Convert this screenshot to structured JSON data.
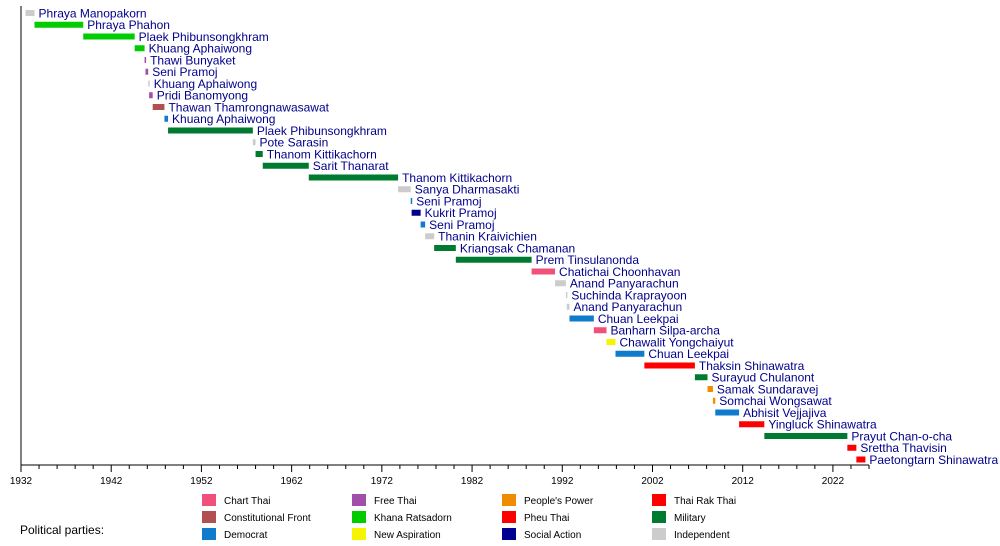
{
  "chart_data": {
    "type": "bar",
    "orientation": "horizontal-timeline",
    "title": "",
    "xlabel": "",
    "ylabel": "",
    "xlim": [
      1932,
      2026
    ],
    "x_ticks": [
      1932,
      1942,
      1952,
      1962,
      1972,
      1982,
      1992,
      2002,
      2012,
      2022
    ],
    "grid": false,
    "legend_title": "Political parties:",
    "legend_position": "bottom",
    "parties": [
      {
        "key": "chart_thai",
        "name": "Chart Thai",
        "color": "#f0507a"
      },
      {
        "key": "constitutional_front",
        "name": "Constitutional Front",
        "color": "#b05050"
      },
      {
        "key": "democrat",
        "name": "Democrat",
        "color": "#0f7bcc"
      },
      {
        "key": "free_thai",
        "name": "Free Thai",
        "color": "#a050a8"
      },
      {
        "key": "khana_ratsadorn",
        "name": "Khana Ratsadorn",
        "color": "#00cc00"
      },
      {
        "key": "new_aspiration",
        "name": "New Aspiration",
        "color": "#f5f500"
      },
      {
        "key": "peoples_power",
        "name": "People's Power",
        "color": "#f08c00"
      },
      {
        "key": "pheu_thai",
        "name": "Pheu Thai",
        "color": "#ff0000"
      },
      {
        "key": "social_action",
        "name": "Social Action",
        "color": "#000090"
      },
      {
        "key": "thai_rak_thai",
        "name": "Thai Rak Thai",
        "color": "#ff0000"
      },
      {
        "key": "military",
        "name": "Military",
        "color": "#007a30"
      },
      {
        "key": "independent",
        "name": "Independent",
        "color": "#cccccc"
      }
    ],
    "series": [
      {
        "name": "Phraya Manopakorn",
        "start": 1932.5,
        "end": 1933.5,
        "party": "independent"
      },
      {
        "name": "Phraya Phahon",
        "start": 1933.5,
        "end": 1938.9,
        "party": "khana_ratsadorn"
      },
      {
        "name": "Plaek Phibunsongkhram",
        "start": 1938.9,
        "end": 1944.6,
        "party": "khana_ratsadorn"
      },
      {
        "name": "Khuang Aphaiwong",
        "start": 1944.6,
        "end": 1945.7,
        "party": "khana_ratsadorn"
      },
      {
        "name": "Thawi Bunyaket",
        "start": 1945.7,
        "end": 1945.8,
        "party": "free_thai"
      },
      {
        "name": "Seni Pramoj",
        "start": 1945.8,
        "end": 1946.1,
        "party": "free_thai"
      },
      {
        "name": "Khuang Aphaiwong",
        "start": 1946.1,
        "end": 1946.2,
        "party": "independent"
      },
      {
        "name": "Pridi Banomyong",
        "start": 1946.2,
        "end": 1946.6,
        "party": "free_thai"
      },
      {
        "name": "Thawan Thamrongnawasawat",
        "start": 1946.6,
        "end": 1947.9,
        "party": "constitutional_front"
      },
      {
        "name": "Khuang Aphaiwong",
        "start": 1947.9,
        "end": 1948.3,
        "party": "democrat"
      },
      {
        "name": "Plaek Phibunsongkhram",
        "start": 1948.3,
        "end": 1957.7,
        "party": "military"
      },
      {
        "name": "Pote Sarasin",
        "start": 1957.7,
        "end": 1958.0,
        "party": "independent"
      },
      {
        "name": "Thanom Kittikachorn",
        "start": 1958.0,
        "end": 1958.8,
        "party": "military"
      },
      {
        "name": "Sarit Thanarat",
        "start": 1958.8,
        "end": 1963.9,
        "party": "military"
      },
      {
        "name": "Thanom Kittikachorn",
        "start": 1963.9,
        "end": 1973.8,
        "party": "military"
      },
      {
        "name": "Sanya Dharmasakti",
        "start": 1973.8,
        "end": 1975.2,
        "party": "independent"
      },
      {
        "name": "Seni Pramoj",
        "start": 1975.2,
        "end": 1975.3,
        "party": "democrat"
      },
      {
        "name": "Kukrit Pramoj",
        "start": 1975.3,
        "end": 1976.3,
        "party": "social_action"
      },
      {
        "name": "Seni Pramoj",
        "start": 1976.3,
        "end": 1976.8,
        "party": "democrat"
      },
      {
        "name": "Thanin Kraivichien",
        "start": 1976.8,
        "end": 1977.8,
        "party": "independent"
      },
      {
        "name": "Kriangsak Chamanan",
        "start": 1977.8,
        "end": 1980.2,
        "party": "military"
      },
      {
        "name": "Prem Tinsulanonda",
        "start": 1980.2,
        "end": 1988.6,
        "party": "military"
      },
      {
        "name": "Chatichai Choonhavan",
        "start": 1988.6,
        "end": 1991.2,
        "party": "chart_thai"
      },
      {
        "name": "Anand Panyarachun",
        "start": 1991.2,
        "end": 1992.4,
        "party": "independent"
      },
      {
        "name": "Suchinda Kraprayoon",
        "start": 1992.4,
        "end": 1992.5,
        "party": "independent"
      },
      {
        "name": "Anand Panyarachun",
        "start": 1992.5,
        "end": 1992.8,
        "party": "independent"
      },
      {
        "name": "Chuan Leekpai",
        "start": 1992.8,
        "end": 1995.5,
        "party": "democrat"
      },
      {
        "name": "Banharn Silpa-archa",
        "start": 1995.5,
        "end": 1996.9,
        "party": "chart_thai"
      },
      {
        "name": "Chawalit Yongchaiyut",
        "start": 1996.9,
        "end": 1997.9,
        "party": "new_aspiration"
      },
      {
        "name": "Chuan Leekpai",
        "start": 1997.9,
        "end": 2001.1,
        "party": "democrat"
      },
      {
        "name": "Thaksin Shinawatra",
        "start": 2001.1,
        "end": 2006.7,
        "party": "thai_rak_thai"
      },
      {
        "name": "Surayud Chulanont",
        "start": 2006.7,
        "end": 2008.1,
        "party": "military"
      },
      {
        "name": "Samak Sundaravej",
        "start": 2008.1,
        "end": 2008.7,
        "party": "peoples_power"
      },
      {
        "name": "Somchai Wongsawat",
        "start": 2008.7,
        "end": 2008.96,
        "party": "peoples_power"
      },
      {
        "name": "Abhisit Vejjajiva",
        "start": 2008.96,
        "end": 2011.6,
        "party": "democrat"
      },
      {
        "name": "Yingluck Shinawatra",
        "start": 2011.6,
        "end": 2014.4,
        "party": "pheu_thai"
      },
      {
        "name": "Prayut Chan-o-cha",
        "start": 2014.4,
        "end": 2023.6,
        "party": "military"
      },
      {
        "name": "Srettha Thavisin",
        "start": 2023.6,
        "end": 2024.6,
        "party": "pheu_thai"
      },
      {
        "name": "Paetongtarn Shinawatra",
        "start": 2024.6,
        "end": 2025.6,
        "party": "pheu_thai"
      }
    ]
  }
}
